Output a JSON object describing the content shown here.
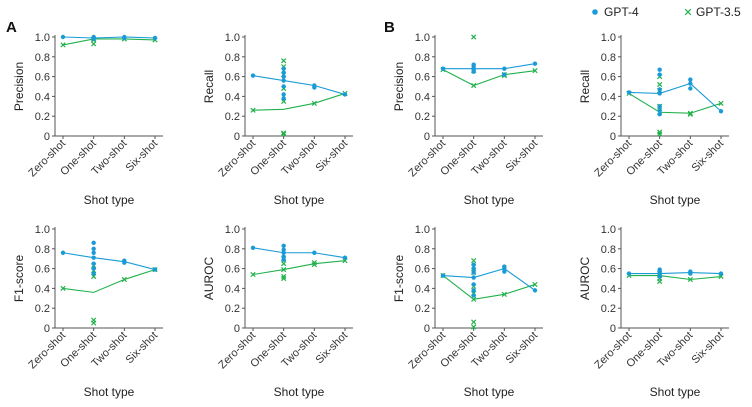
{
  "panels": [
    {
      "letter": "A"
    },
    {
      "letter": "B"
    }
  ],
  "legend": [
    {
      "name": "GPT-4",
      "marker": "dot",
      "color": "#1a9bd7"
    },
    {
      "name": "GPT-3.5",
      "marker": "x",
      "color": "#21b14b"
    }
  ],
  "chart_data": [
    {
      "panel": "A",
      "type": "line",
      "ylabel": "Precision",
      "xlabel": "Shot type",
      "categories": [
        "Zero-shot",
        "One-shot",
        "Two-shot",
        "Six-shot"
      ],
      "yticks": [
        "0",
        "0.2",
        "0.4",
        "0.6",
        "0.8",
        "1.0"
      ],
      "ylim": [
        0,
        1
      ],
      "series": [
        {
          "name": "GPT-4",
          "values": [
            1.0,
            0.99,
            1.0,
            0.99
          ],
          "points": [
            [
              1.0
            ],
            [
              0.98,
              0.99,
              1.0
            ],
            [
              0.99,
              1.0
            ],
            [
              0.99
            ]
          ]
        },
        {
          "name": "GPT-3.5",
          "values": [
            0.92,
            0.98,
            0.98,
            0.97
          ],
          "points": [
            [
              0.92
            ],
            [
              0.93,
              0.97,
              0.98
            ],
            [
              0.98
            ],
            [
              0.97
            ]
          ]
        }
      ]
    },
    {
      "panel": "A",
      "type": "line",
      "ylabel": "Recall",
      "xlabel": "Shot type",
      "categories": [
        "Zero-shot",
        "One-shot",
        "Two-shot",
        "Six-shot"
      ],
      "yticks": [
        "0",
        "0.2",
        "0.4",
        "0.6",
        "0.8",
        "1.0"
      ],
      "ylim": [
        0,
        1
      ],
      "series": [
        {
          "name": "GPT-4",
          "values": [
            0.61,
            0.56,
            0.51,
            0.42
          ],
          "points": [
            [
              0.61
            ],
            [
              0.38,
              0.42,
              0.5,
              0.56,
              0.6,
              0.64,
              0.68
            ],
            [
              0.49,
              0.51
            ],
            [
              0.42
            ]
          ]
        },
        {
          "name": "GPT-3.5",
          "values": [
            0.26,
            0.27,
            0.33,
            0.43
          ],
          "points": [
            [
              0.26
            ],
            [
              0.02,
              0.03,
              0.35,
              0.48,
              0.62,
              0.7,
              0.76
            ],
            [
              0.33
            ],
            [
              0.43
            ]
          ]
        }
      ]
    },
    {
      "panel": "B",
      "type": "line",
      "ylabel": "Precision",
      "xlabel": "Shot type",
      "categories": [
        "Zero-shot",
        "One-shot",
        "Two-shot",
        "Six-shot"
      ],
      "yticks": [
        "0",
        "0.2",
        "0.4",
        "0.6",
        "0.8",
        "1.0"
      ],
      "ylim": [
        0,
        1
      ],
      "series": [
        {
          "name": "GPT-4",
          "values": [
            0.68,
            0.68,
            0.68,
            0.73
          ],
          "points": [
            [
              0.68
            ],
            [
              0.65,
              0.67,
              0.7,
              0.72
            ],
            [
              0.62,
              0.68
            ],
            [
              0.73
            ]
          ]
        },
        {
          "name": "GPT-3.5",
          "values": [
            0.67,
            0.51,
            0.62,
            0.66
          ],
          "points": [
            [
              0.67
            ],
            [
              0.51,
              0.66,
              1.0
            ],
            [
              0.61,
              0.62
            ],
            [
              0.66
            ]
          ]
        }
      ]
    },
    {
      "panel": "B",
      "type": "line",
      "ylabel": "Recall",
      "xlabel": "Shot type",
      "categories": [
        "Zero-shot",
        "One-shot",
        "Two-shot",
        "Six-shot"
      ],
      "yticks": [
        "0",
        "0.2",
        "0.4",
        "0.6",
        "0.8",
        "1.0"
      ],
      "ylim": [
        0,
        1
      ],
      "series": [
        {
          "name": "GPT-4",
          "values": [
            0.44,
            0.43,
            0.53,
            0.25
          ],
          "points": [
            [
              0.44
            ],
            [
              0.22,
              0.26,
              0.3,
              0.43,
              0.47,
              0.62,
              0.67
            ],
            [
              0.48,
              0.53,
              0.57
            ],
            [
              0.25
            ]
          ]
        },
        {
          "name": "GPT-3.5",
          "values": [
            0.43,
            0.24,
            0.23,
            0.33
          ],
          "points": [
            [
              0.43
            ],
            [
              0.02,
              0.04,
              0.24,
              0.3,
              0.46,
              0.52,
              0.6
            ],
            [
              0.22,
              0.23
            ],
            [
              0.33
            ]
          ]
        }
      ]
    },
    {
      "panel": "A",
      "type": "line",
      "ylabel": "F1-score",
      "xlabel": "Shot type",
      "categories": [
        "Zero-shot",
        "One-shot",
        "Two-shot",
        "Six-shot"
      ],
      "yticks": [
        "0",
        "0.2",
        "0.4",
        "0.6",
        "0.8",
        "1.0"
      ],
      "ylim": [
        0,
        1
      ],
      "series": [
        {
          "name": "GPT-4",
          "values": [
            0.76,
            0.71,
            0.67,
            0.59
          ],
          "points": [
            [
              0.76
            ],
            [
              0.55,
              0.6,
              0.65,
              0.71,
              0.76,
              0.8,
              0.86
            ],
            [
              0.66,
              0.68
            ],
            [
              0.59
            ]
          ]
        },
        {
          "name": "GPT-3.5",
          "values": [
            0.4,
            0.36,
            0.49,
            0.59
          ],
          "points": [
            [
              0.4
            ],
            [
              0.05,
              0.08,
              0.52,
              0.58,
              0.63
            ],
            [
              0.49
            ],
            [
              0.59
            ]
          ]
        }
      ]
    },
    {
      "panel": "A",
      "type": "line",
      "ylabel": "AUROC",
      "xlabel": "Shot type",
      "categories": [
        "Zero-shot",
        "One-shot",
        "Two-shot",
        "Six-shot"
      ],
      "yticks": [
        "0",
        "0.2",
        "0.4",
        "0.6",
        "0.8",
        "1.0"
      ],
      "ylim": [
        0,
        1
      ],
      "series": [
        {
          "name": "GPT-4",
          "values": [
            0.81,
            0.76,
            0.76,
            0.71
          ],
          "points": [
            [
              0.81
            ],
            [
              0.69,
              0.72,
              0.76,
              0.79,
              0.83
            ],
            [
              0.76
            ],
            [
              0.71
            ]
          ]
        },
        {
          "name": "GPT-3.5",
          "values": [
            0.54,
            0.59,
            0.65,
            0.68
          ],
          "points": [
            [
              0.54
            ],
            [
              0.5,
              0.52,
              0.59,
              0.65,
              0.7
            ],
            [
              0.64,
              0.66
            ],
            [
              0.68
            ]
          ]
        }
      ]
    },
    {
      "panel": "B",
      "type": "line",
      "ylabel": "F1-score",
      "xlabel": "Shot type",
      "categories": [
        "Zero-shot",
        "One-shot",
        "Two-shot",
        "Six-shot"
      ],
      "yticks": [
        "0",
        "0.2",
        "0.4",
        "0.6",
        "0.8",
        "1.0"
      ],
      "ylim": [
        0,
        1
      ],
      "series": [
        {
          "name": "GPT-4",
          "values": [
            0.53,
            0.51,
            0.6,
            0.38
          ],
          "points": [
            [
              0.53
            ],
            [
              0.33,
              0.38,
              0.44,
              0.51,
              0.56,
              0.6,
              0.64
            ],
            [
              0.57,
              0.6,
              0.62
            ],
            [
              0.38
            ]
          ]
        },
        {
          "name": "GPT-3.5",
          "values": [
            0.53,
            0.29,
            0.34,
            0.44
          ],
          "points": [
            [
              0.53
            ],
            [
              0.01,
              0.06,
              0.29,
              0.35,
              0.42,
              0.56,
              0.62,
              0.68
            ],
            [
              0.34
            ],
            [
              0.44
            ]
          ]
        }
      ]
    },
    {
      "panel": "B",
      "type": "line",
      "ylabel": "AUROC",
      "xlabel": "Shot type",
      "categories": [
        "Zero-shot",
        "One-shot",
        "Two-shot",
        "Six-shot"
      ],
      "yticks": [
        "0",
        "0.2",
        "0.4",
        "0.6",
        "0.8",
        "1.0"
      ],
      "ylim": [
        0,
        1
      ],
      "series": [
        {
          "name": "GPT-4",
          "values": [
            0.55,
            0.55,
            0.56,
            0.55
          ],
          "points": [
            [
              0.55
            ],
            [
              0.52,
              0.55,
              0.57,
              0.59
            ],
            [
              0.55,
              0.57
            ],
            [
              0.55
            ]
          ]
        },
        {
          "name": "GPT-3.5",
          "values": [
            0.53,
            0.53,
            0.49,
            0.52
          ],
          "points": [
            [
              0.53
            ],
            [
              0.47,
              0.5,
              0.53,
              0.55
            ],
            [
              0.49
            ],
            [
              0.52
            ]
          ]
        }
      ]
    }
  ]
}
